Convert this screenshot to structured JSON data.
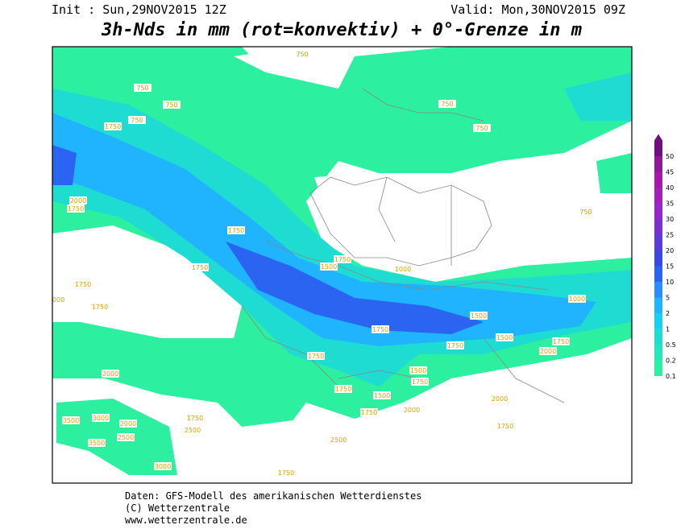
{
  "header": {
    "init": "Init : Sun,29NOV2015 12Z",
    "valid": "Valid: Mon,30NOV2015 09Z",
    "title": "3h-Nds in mm (rot=konvektiv) + 0°-Grenze in m"
  },
  "legend": {
    "levels": [
      0.1,
      0.2,
      0.5,
      1,
      2,
      5,
      10,
      15,
      20,
      25,
      30,
      35,
      40,
      45,
      50
    ],
    "colors": [
      "#2cf0a0",
      "#25e6b8",
      "#1fdcd2",
      "#18cff0",
      "#20b4ff",
      "#2a8cff",
      "#2a64f0",
      "#3b48e0",
      "#5a3cd8",
      "#7a30d0",
      "#9428c8",
      "#a020b8",
      "#a818a8",
      "#901898",
      "#701080"
    ]
  },
  "contour_labels": [
    750,
    750,
    750,
    1750,
    750,
    2000,
    1750,
    1750,
    1750,
    1500,
    1750,
    1000,
    1750,
    1750,
    1000,
    1000,
    750,
    750,
    750,
    1500,
    1750,
    1500,
    1750,
    1750,
    2000,
    1750,
    2000,
    1500,
    1750,
    1750,
    1500,
    2000,
    1750,
    2000,
    1750,
    1750,
    2000,
    2500,
    3000,
    3500,
    2500,
    3500,
    3000,
    2500,
    1750
  ],
  "footer": [
    "Daten: GFS-Modell des amerikanischen Wetterdienstes",
    "(C) Wetterzentrale",
    "www.wetterzentrale.de"
  ]
}
